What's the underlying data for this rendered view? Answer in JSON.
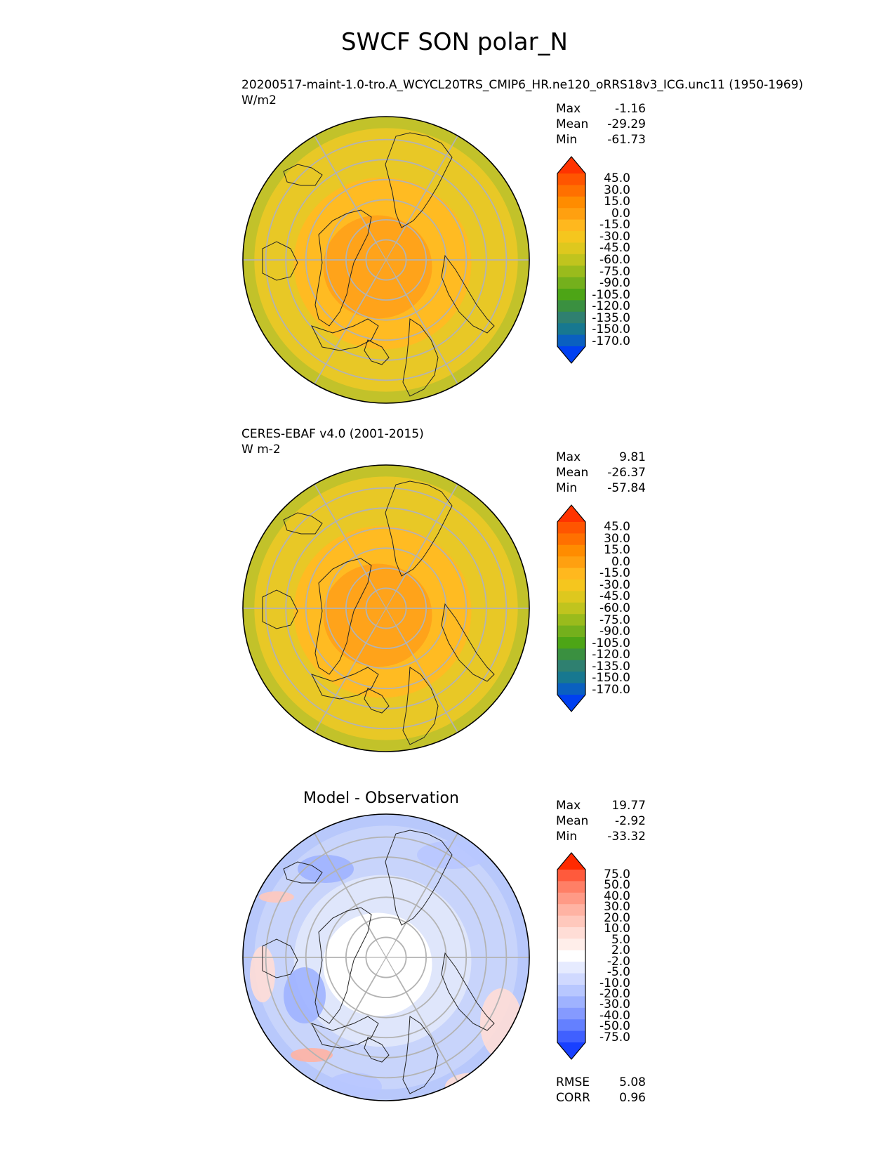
{
  "title": "SWCF SON polar_N",
  "panels": [
    {
      "id": "test",
      "label_line1": "20200517-maint-1.0-tro.A_WCYCL20TRS_CMIP6_HR.ne120_oRRS18v3_ICG.unc11 (1950-1969)",
      "label_line2": "W/m2",
      "stats": {
        "max_label": "Max",
        "max": "-1.16",
        "mean_label": "Mean",
        "mean": "-29.29",
        "min_label": "Min",
        "min": "-61.73"
      },
      "colorbar_ticks": [
        "45.0",
        "30.0",
        "15.0",
        "0.0",
        "-15.0",
        "-30.0",
        "-45.0",
        "-60.0",
        "-75.0",
        "-90.0",
        "-105.0",
        "-120.0",
        "-135.0",
        "-150.0",
        "-170.0"
      ],
      "colorbar_colors": [
        "#ff3300",
        "#ff5500",
        "#ff7000",
        "#ff8c00",
        "#ffa010",
        "#ffb81e",
        "#f5c61e",
        "#dec81e",
        "#c0c41e",
        "#9abb1c",
        "#74b01c",
        "#4da516",
        "#3a9040",
        "#2f8070",
        "#177890",
        "#0a60c0",
        "#0040f0"
      ],
      "field_colors": {
        "center": "#ffa31a",
        "mid": "#ffbb22",
        "outer": "#e8c826",
        "edge": "#c2c22a"
      }
    },
    {
      "id": "reference",
      "label_line1": "CERES-EBAF v4.0 (2001-2015)",
      "label_line2": "W m-2",
      "stats": {
        "max_label": "Max",
        "max": "9.81",
        "mean_label": "Mean",
        "mean": "-26.37",
        "min_label": "Min",
        "min": "-57.84"
      },
      "colorbar_ticks": [
        "45.0",
        "30.0",
        "15.0",
        "0.0",
        "-15.0",
        "-30.0",
        "-45.0",
        "-60.0",
        "-75.0",
        "-90.0",
        "-105.0",
        "-120.0",
        "-135.0",
        "-150.0",
        "-170.0"
      ],
      "colorbar_colors": [
        "#ff3300",
        "#ff5500",
        "#ff7000",
        "#ff8c00",
        "#ffa010",
        "#ffb81e",
        "#f5c61e",
        "#dec81e",
        "#c0c41e",
        "#9abb1c",
        "#74b01c",
        "#4da516",
        "#3a9040",
        "#2f8070",
        "#177890",
        "#0a60c0",
        "#0040f0"
      ],
      "field_colors": {
        "center": "#ffa31a",
        "mid": "#ffbb22",
        "outer": "#e8c826",
        "edge": "#c2c22a"
      }
    },
    {
      "id": "difference",
      "subtitle": "Model - Observation",
      "stats": {
        "max_label": "Max",
        "max": "19.77",
        "mean_label": "Mean",
        "mean": "-2.92",
        "min_label": "Min",
        "min": "-33.32"
      },
      "colorbar_ticks": [
        "75.0",
        "50.0",
        "40.0",
        "30.0",
        "20.0",
        "10.0",
        "5.0",
        "2.0",
        "-2.0",
        "-5.0",
        "-10.0",
        "-20.0",
        "-30.0",
        "-40.0",
        "-50.0",
        "-75.0"
      ],
      "colorbar_colors": [
        "#ff2a00",
        "#ff5a3c",
        "#ff7f66",
        "#ff9a86",
        "#ffb3a3",
        "#ffc8bc",
        "#ffddd6",
        "#ffeeea",
        "#ffffff",
        "#e6ebff",
        "#d0d9ff",
        "#b8c7ff",
        "#9fb2ff",
        "#859aff",
        "#6480ff",
        "#4060ff",
        "#1840ff"
      ],
      "field_colors": {
        "center": "#ffffff",
        "mid": "#dfe6fb",
        "outer": "#c8d4fb",
        "edge": "#b8c8fb"
      },
      "metrics": {
        "rmse_label": "RMSE",
        "rmse": "5.08",
        "corr_label": "CORR",
        "corr": "0.96"
      }
    }
  ]
}
